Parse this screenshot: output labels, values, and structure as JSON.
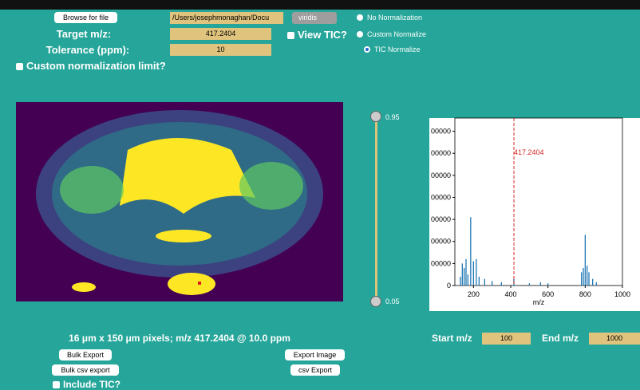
{
  "controls": {
    "browse_button": "Browse for file",
    "file_path": "/Users/josephmonaghan/Docu",
    "colormap": "viridis",
    "target_label": "Target m/z:",
    "target_value": "417.2404",
    "tolerance_label": "Tolerance (ppm):",
    "tolerance_value": "10",
    "view_tic": "View TIC?",
    "custom_limit": "Custom normalization limit?",
    "normalization": [
      "No Normalization",
      "Custom Normalize",
      "TIC Normalize"
    ]
  },
  "slider": {
    "top": "0.95",
    "bottom": "0.05"
  },
  "spectrum": {
    "xlabel": "m/z",
    "annotation": "417.2404",
    "marker": 417.2404,
    "xlim": [
      100,
      1000
    ],
    "xticks": [
      200,
      400,
      600,
      800,
      1000
    ],
    "ylim": [
      0,
      7.6
    ],
    "yticks": [
      0,
      {
        "value": 1,
        "label": "00000"
      },
      {
        "value": 2,
        "label": "00000"
      },
      {
        "value": 3,
        "label": "00000"
      },
      {
        "value": 4,
        "label": "00000"
      },
      {
        "value": 5,
        "label": "00000"
      },
      {
        "value": 6,
        "label": "00000"
      },
      {
        "value": 7,
        "label": "00000"
      }
    ],
    "x": [
      130,
      140,
      150,
      160,
      170,
      185,
      200,
      215,
      230,
      260,
      300,
      350,
      417,
      500,
      560,
      600,
      780,
      790,
      800,
      810,
      820,
      840,
      860
    ],
    "values": [
      0.4,
      1.0,
      0.8,
      1.2,
      0.5,
      3.1,
      1.1,
      1.2,
      0.4,
      0.3,
      0.2,
      0.15,
      0.3,
      0.1,
      0.15,
      0.1,
      0.6,
      0.8,
      2.3,
      0.9,
      0.6,
      0.3,
      0.15
    ],
    "color": "#1f77b4"
  },
  "footer": {
    "caption": "16 μm x 150 μm pixels; m/z 417.2404 @ 10.0 ppm",
    "bulk_export": "Bulk Export",
    "export_image": "Export Image",
    "bulk_csv": "Bulk csv export",
    "csv_export": "csv Export",
    "include_tic": "Include TIC?",
    "start_label": "Start m/z",
    "start_value": "100",
    "end_label": "End m/z",
    "end_value": "1000"
  }
}
